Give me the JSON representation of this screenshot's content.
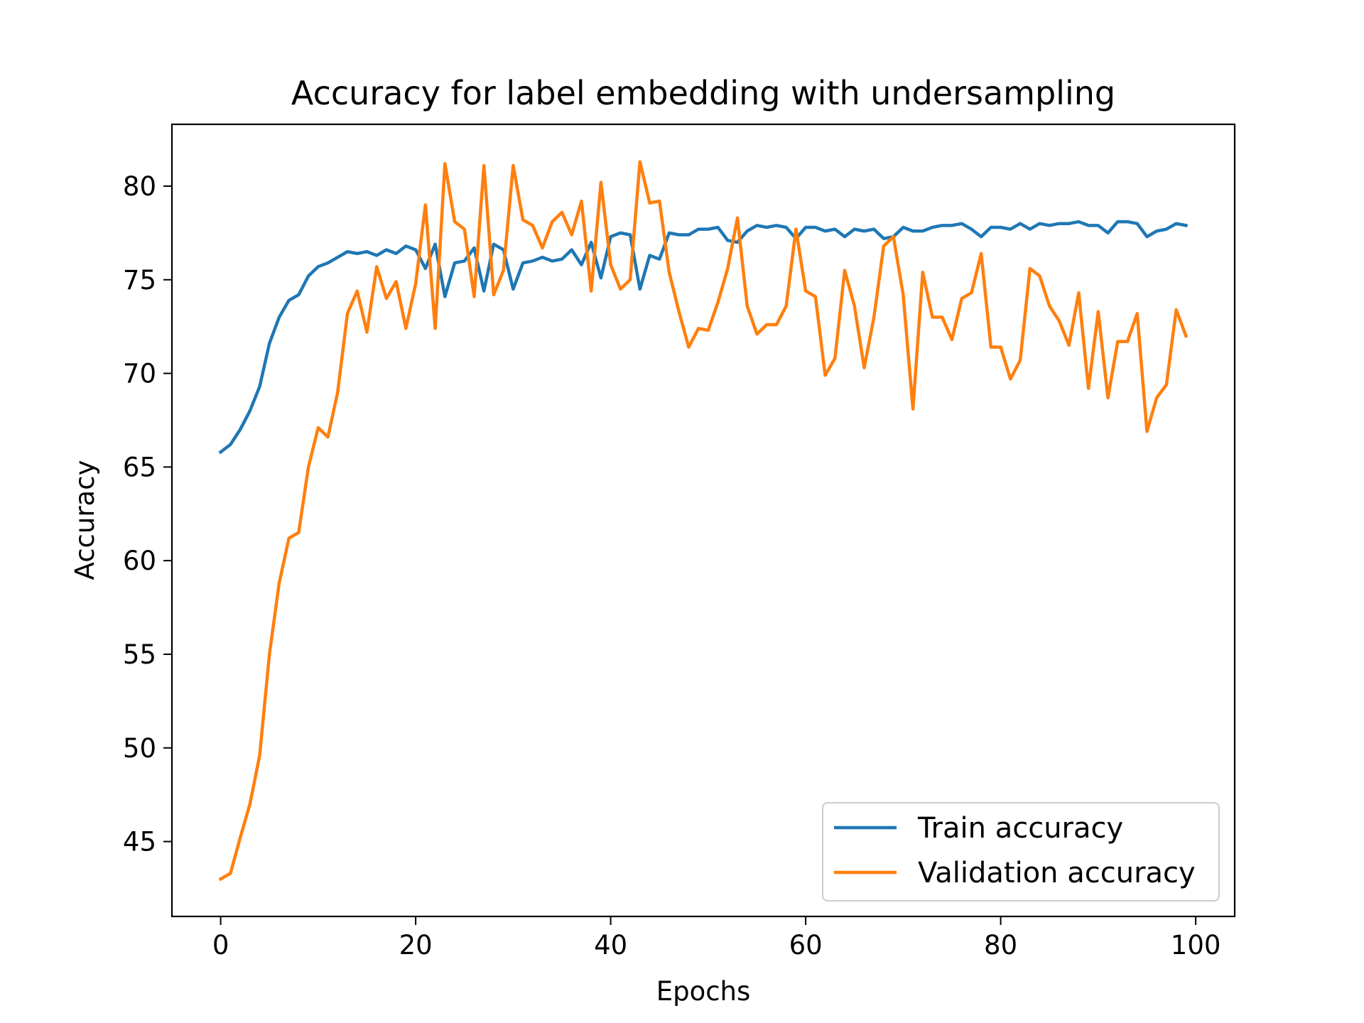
{
  "chart_data": {
    "type": "line",
    "title": "Accuracy for label embedding with undersampling",
    "xlabel": "Epochs",
    "ylabel": "Accuracy",
    "xlim": [
      -5,
      104
    ],
    "ylim": [
      41.0,
      83.3
    ],
    "xticks": [
      0,
      20,
      40,
      60,
      80,
      100
    ],
    "yticks": [
      45,
      50,
      55,
      60,
      65,
      70,
      75,
      80
    ],
    "grid": false,
    "legend": "lower right",
    "series": [
      {
        "name": "Train accuracy",
        "color": "#1f77b4",
        "values": [
          65.8,
          66.2,
          67.0,
          68.0,
          69.3,
          71.6,
          73.0,
          73.9,
          74.2,
          75.2,
          75.7,
          75.9,
          76.2,
          76.5,
          76.4,
          76.5,
          76.3,
          76.6,
          76.4,
          76.8,
          76.6,
          75.6,
          76.9,
          74.1,
          75.9,
          76.0,
          76.7,
          74.4,
          76.9,
          76.6,
          74.5,
          75.9,
          76.0,
          76.2,
          76.0,
          76.1,
          76.6,
          75.8,
          77.0,
          75.1,
          77.3,
          77.5,
          77.4,
          74.5,
          76.3,
          76.1,
          77.5,
          77.4,
          77.4,
          77.7,
          77.7,
          77.8,
          77.1,
          77.0,
          77.6,
          77.9,
          77.8,
          77.9,
          77.8,
          77.2,
          77.8,
          77.8,
          77.6,
          77.7,
          77.3,
          77.7,
          77.6,
          77.7,
          77.2,
          77.3,
          77.8,
          77.6,
          77.6,
          77.8,
          77.9,
          77.9,
          78.0,
          77.7,
          77.3,
          77.8,
          77.8,
          77.7,
          78.0,
          77.7,
          78.0,
          77.9,
          78.0,
          78.0,
          78.1,
          77.9,
          77.9,
          77.5,
          78.1,
          78.1,
          78.0,
          77.3,
          77.6,
          77.7,
          78.0,
          77.9
        ]
      },
      {
        "name": "Validation accuracy",
        "color": "#ff7f0e",
        "values": [
          43.0,
          43.3,
          45.2,
          47.0,
          49.6,
          55.0,
          58.8,
          61.2,
          61.5,
          65.0,
          67.1,
          66.6,
          69.0,
          73.2,
          74.4,
          72.2,
          75.7,
          74.0,
          74.9,
          72.4,
          74.8,
          79.0,
          72.4,
          81.2,
          78.1,
          77.7,
          74.1,
          81.1,
          74.2,
          75.5,
          81.1,
          78.2,
          77.9,
          76.7,
          78.1,
          78.6,
          77.4,
          79.2,
          74.4,
          80.2,
          75.8,
          74.5,
          75.0,
          81.3,
          79.1,
          79.2,
          75.4,
          73.3,
          71.4,
          72.4,
          72.3,
          73.8,
          75.6,
          78.3,
          73.6,
          72.1,
          72.6,
          72.6,
          73.6,
          77.7,
          74.4,
          74.1,
          69.9,
          70.8,
          75.5,
          73.6,
          70.3,
          73.0,
          76.8,
          77.3,
          74.2,
          68.1,
          75.4,
          73.0,
          73.0,
          71.8,
          74.0,
          74.3,
          76.4,
          71.4,
          71.4,
          69.7,
          70.7,
          75.6,
          75.2,
          73.6,
          72.8,
          71.5,
          74.3,
          69.2,
          73.3,
          68.7,
          71.7,
          71.7,
          73.2,
          66.9,
          68.7,
          69.4,
          73.4,
          72.0
        ]
      }
    ]
  }
}
